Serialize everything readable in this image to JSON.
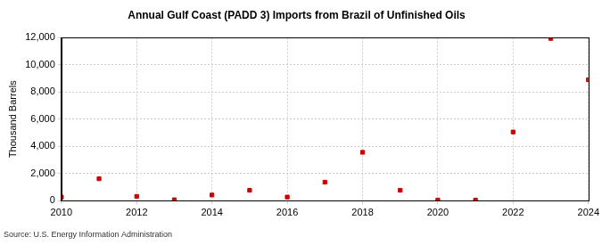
{
  "chart_data": {
    "type": "scatter",
    "title": "Annual Gulf Coast (PADD 3) Imports from Brazil of Unfinished Oils",
    "y_label": "Thousand Barrels",
    "source": "Source: U.S. Energy Information Administration",
    "x": [
      2010,
      2011,
      2012,
      2013,
      2014,
      2015,
      2016,
      2017,
      2018,
      2019,
      2020,
      2021,
      2022,
      2023,
      2024
    ],
    "values": [
      250,
      1600,
      300,
      50,
      400,
      750,
      250,
      1350,
      3550,
      750,
      30,
      20,
      5050,
      11950,
      8900
    ],
    "color": "#cc0000",
    "marker": "square",
    "xlim": [
      2010,
      2024
    ],
    "xticks": [
      2010,
      2012,
      2014,
      2016,
      2018,
      2020,
      2022,
      2024
    ],
    "ylim": [
      0,
      12000
    ],
    "yticks": [
      0,
      {
        "value": 2000,
        "label": "2,000"
      },
      {
        "value": 4000,
        "label": "4,000"
      },
      {
        "value": 6000,
        "label": "6,000"
      },
      {
        "value": 8000,
        "label": "8,000"
      },
      {
        "value": 10000,
        "label": "10,000"
      },
      {
        "value": 12000,
        "label": "12,000"
      }
    ],
    "grid": true
  }
}
